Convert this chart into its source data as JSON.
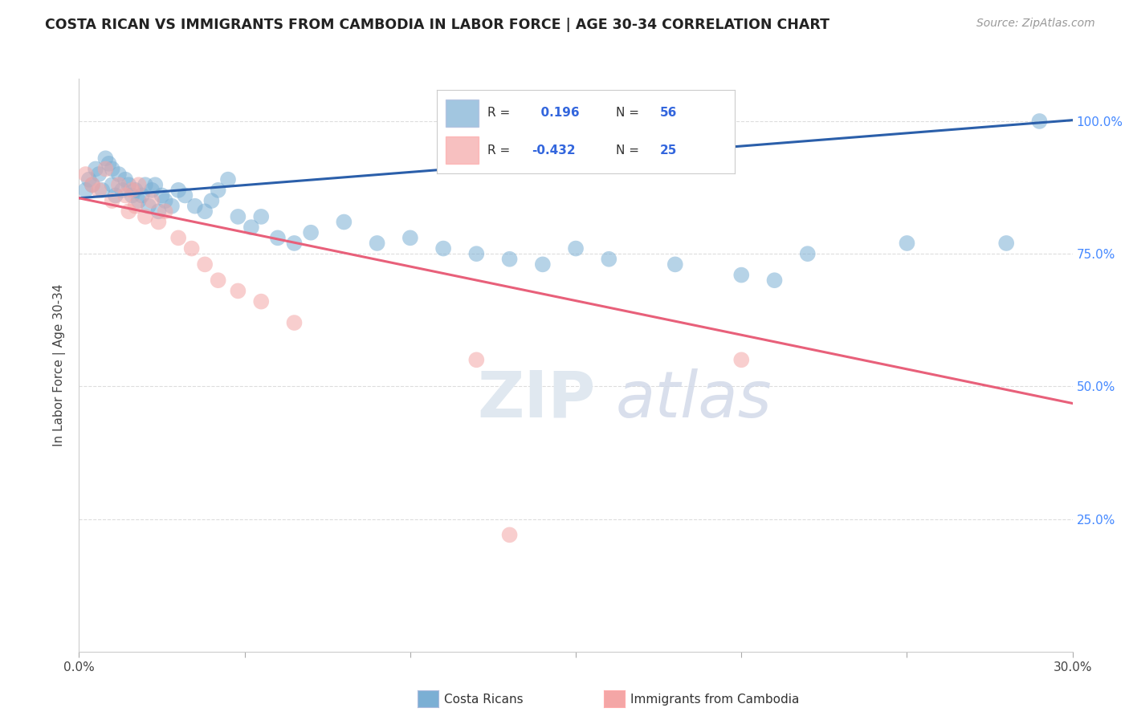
{
  "title": "COSTA RICAN VS IMMIGRANTS FROM CAMBODIA IN LABOR FORCE | AGE 30-34 CORRELATION CHART",
  "source": "Source: ZipAtlas.com",
  "ylabel": "In Labor Force | Age 30-34",
  "xlim": [
    0.0,
    0.3
  ],
  "ylim": [
    0.0,
    1.08
  ],
  "x_ticks": [
    0.0,
    0.05,
    0.1,
    0.15,
    0.2,
    0.25,
    0.3
  ],
  "x_tick_labels": [
    "0.0%",
    "",
    "",
    "",
    "",
    "",
    "30.0%"
  ],
  "y_ticks": [
    0.0,
    0.25,
    0.5,
    0.75,
    1.0
  ],
  "y_tick_labels_right": [
    "",
    "25.0%",
    "50.0%",
    "75.0%",
    "100.0%"
  ],
  "blue_R": 0.196,
  "blue_N": 56,
  "pink_R": -0.432,
  "pink_N": 25,
  "blue_color": "#7bafd4",
  "pink_color": "#f4a6a6",
  "blue_line_color": "#2b5faa",
  "pink_line_color": "#e8607a",
  "legend_label_blue": "Costa Ricans",
  "legend_label_pink": "Immigrants from Cambodia",
  "blue_x": [
    0.002,
    0.003,
    0.004,
    0.005,
    0.006,
    0.007,
    0.008,
    0.009,
    0.01,
    0.01,
    0.011,
    0.012,
    0.013,
    0.014,
    0.015,
    0.016,
    0.017,
    0.018,
    0.019,
    0.02,
    0.021,
    0.022,
    0.023,
    0.024,
    0.025,
    0.026,
    0.028,
    0.03,
    0.032,
    0.035,
    0.038,
    0.04,
    0.042,
    0.045,
    0.048,
    0.052,
    0.055,
    0.06,
    0.065,
    0.07,
    0.08,
    0.09,
    0.1,
    0.11,
    0.12,
    0.13,
    0.14,
    0.15,
    0.16,
    0.18,
    0.2,
    0.21,
    0.22,
    0.25,
    0.28,
    0.29
  ],
  "blue_y": [
    0.87,
    0.89,
    0.88,
    0.91,
    0.9,
    0.87,
    0.93,
    0.92,
    0.88,
    0.91,
    0.86,
    0.9,
    0.87,
    0.89,
    0.88,
    0.86,
    0.87,
    0.85,
    0.86,
    0.88,
    0.84,
    0.87,
    0.88,
    0.83,
    0.86,
    0.85,
    0.84,
    0.87,
    0.86,
    0.84,
    0.83,
    0.85,
    0.87,
    0.89,
    0.82,
    0.8,
    0.82,
    0.78,
    0.77,
    0.79,
    0.81,
    0.77,
    0.78,
    0.76,
    0.75,
    0.74,
    0.73,
    0.76,
    0.74,
    0.73,
    0.71,
    0.7,
    0.75,
    0.77,
    0.77,
    1.0
  ],
  "pink_x": [
    0.002,
    0.004,
    0.006,
    0.008,
    0.01,
    0.012,
    0.014,
    0.015,
    0.016,
    0.017,
    0.018,
    0.02,
    0.022,
    0.024,
    0.026,
    0.03,
    0.034,
    0.038,
    0.042,
    0.048,
    0.055,
    0.065,
    0.12,
    0.2,
    0.13
  ],
  "pink_y": [
    0.9,
    0.88,
    0.87,
    0.91,
    0.85,
    0.88,
    0.86,
    0.83,
    0.87,
    0.84,
    0.88,
    0.82,
    0.85,
    0.81,
    0.83,
    0.78,
    0.76,
    0.73,
    0.7,
    0.68,
    0.66,
    0.62,
    0.55,
    0.55,
    0.22
  ]
}
